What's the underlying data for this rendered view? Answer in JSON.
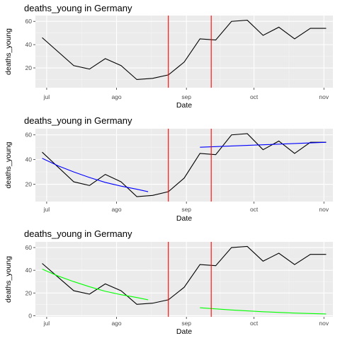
{
  "colors": {
    "panel_bg": "#ebebeb",
    "grid_major": "#ffffff",
    "grid_minor": "#f5f5f5",
    "series_black": "#000000",
    "vline_red": "#ff0000",
    "fit_blue": "#0000ff",
    "fit_green": "#00ff00",
    "tick_text": "#4d4d4d"
  },
  "chart_data": [
    {
      "type": "line",
      "title": "deaths_young in Germany",
      "xlabel": "Date",
      "ylabel": "deaths_young",
      "x_ticks": [
        {
          "label": "jul",
          "date": "2020-07-01"
        },
        {
          "label": "ago",
          "date": "2020-08-01"
        },
        {
          "label": "sep",
          "date": "2020-09-01"
        },
        {
          "label": "oct",
          "date": "2020-10-01"
        },
        {
          "label": "nov",
          "date": "2020-11-01"
        }
      ],
      "xlim": [
        "2020-06-26",
        "2020-11-05"
      ],
      "ylim": [
        3,
        65
      ],
      "y_ticks": [
        20,
        40,
        60
      ],
      "grid": true,
      "series": [
        {
          "color": "#000000",
          "points": [
            [
              "2020-06-29",
              46
            ],
            [
              "2020-07-13",
              22
            ],
            [
              "2020-07-20",
              19
            ],
            [
              "2020-07-27",
              28
            ],
            [
              "2020-08-03",
              22
            ],
            [
              "2020-08-10",
              10
            ],
            [
              "2020-08-17",
              11
            ],
            [
              "2020-08-24",
              14
            ],
            [
              "2020-08-31",
              25
            ],
            [
              "2020-09-07",
              45
            ],
            [
              "2020-09-14",
              44
            ],
            [
              "2020-09-21",
              60
            ],
            [
              "2020-09-28",
              61
            ],
            [
              "2020-10-05",
              48
            ],
            [
              "2020-10-12",
              55
            ],
            [
              "2020-10-19",
              45
            ],
            [
              "2020-10-26",
              54
            ],
            [
              "2020-11-02",
              54
            ]
          ]
        }
      ],
      "vlines": [
        "2020-08-24",
        "2020-09-12"
      ]
    },
    {
      "type": "line",
      "title": "deaths_young in Germany",
      "xlabel": "Date",
      "ylabel": "deaths_young",
      "x_ticks": [
        {
          "label": "jul",
          "date": "2020-07-01"
        },
        {
          "label": "ago",
          "date": "2020-08-01"
        },
        {
          "label": "sep",
          "date": "2020-09-01"
        },
        {
          "label": "oct",
          "date": "2020-10-01"
        },
        {
          "label": "nov",
          "date": "2020-11-01"
        }
      ],
      "xlim": [
        "2020-06-26",
        "2020-11-05"
      ],
      "ylim": [
        6,
        65
      ],
      "y_ticks": [
        20,
        40,
        60
      ],
      "grid": true,
      "series": [
        {
          "color": "#000000",
          "points": [
            [
              "2020-06-29",
              46
            ],
            [
              "2020-07-13",
              22
            ],
            [
              "2020-07-20",
              19
            ],
            [
              "2020-07-27",
              28
            ],
            [
              "2020-08-03",
              22
            ],
            [
              "2020-08-10",
              10
            ],
            [
              "2020-08-17",
              11
            ],
            [
              "2020-08-24",
              14
            ],
            [
              "2020-08-31",
              25
            ],
            [
              "2020-09-07",
              45
            ],
            [
              "2020-09-14",
              44
            ],
            [
              "2020-09-21",
              60
            ],
            [
              "2020-09-28",
              61
            ],
            [
              "2020-10-05",
              48
            ],
            [
              "2020-10-12",
              55
            ],
            [
              "2020-10-19",
              45
            ],
            [
              "2020-10-26",
              54
            ],
            [
              "2020-11-02",
              54
            ]
          ]
        },
        {
          "color": "#0000ff",
          "points": [
            [
              "2020-06-29",
              41
            ],
            [
              "2020-07-06",
              35
            ],
            [
              "2020-07-13",
              30
            ],
            [
              "2020-07-20",
              25.5
            ],
            [
              "2020-07-27",
              21.5
            ],
            [
              "2020-08-03",
              18.5
            ],
            [
              "2020-08-10",
              16
            ],
            [
              "2020-08-15",
              14
            ]
          ]
        },
        {
          "color": "#0000ff",
          "points": [
            [
              "2020-09-07",
              50
            ],
            [
              "2020-09-21",
              51
            ],
            [
              "2020-10-05",
              52
            ],
            [
              "2020-10-19",
              53
            ],
            [
              "2020-11-02",
              54
            ]
          ]
        }
      ],
      "vlines": [
        "2020-08-24",
        "2020-09-12"
      ]
    },
    {
      "type": "line",
      "title": "deaths_young in Germany",
      "xlabel": "Date",
      "ylabel": "deaths_young",
      "x_ticks": [
        {
          "label": "jul",
          "date": "2020-07-01"
        },
        {
          "label": "ago",
          "date": "2020-08-01"
        },
        {
          "label": "sep",
          "date": "2020-09-01"
        },
        {
          "label": "oct",
          "date": "2020-10-01"
        },
        {
          "label": "nov",
          "date": "2020-11-01"
        }
      ],
      "xlim": [
        "2020-06-26",
        "2020-11-05"
      ],
      "ylim": [
        -1,
        65
      ],
      "y_ticks": [
        0,
        20,
        40,
        60
      ],
      "grid": true,
      "series": [
        {
          "color": "#000000",
          "points": [
            [
              "2020-06-29",
              46
            ],
            [
              "2020-07-13",
              22
            ],
            [
              "2020-07-20",
              19
            ],
            [
              "2020-07-27",
              28
            ],
            [
              "2020-08-03",
              22
            ],
            [
              "2020-08-10",
              10
            ],
            [
              "2020-08-17",
              11
            ],
            [
              "2020-08-24",
              14
            ],
            [
              "2020-08-31",
              25
            ],
            [
              "2020-09-07",
              45
            ],
            [
              "2020-09-14",
              44
            ],
            [
              "2020-09-21",
              60
            ],
            [
              "2020-09-28",
              61
            ],
            [
              "2020-10-05",
              48
            ],
            [
              "2020-10-12",
              55
            ],
            [
              "2020-10-19",
              45
            ],
            [
              "2020-10-26",
              54
            ],
            [
              "2020-11-02",
              54
            ]
          ]
        },
        {
          "color": "#00ff00",
          "points": [
            [
              "2020-06-29",
              41
            ],
            [
              "2020-07-06",
              35
            ],
            [
              "2020-07-13",
              30
            ],
            [
              "2020-07-20",
              25.5
            ],
            [
              "2020-07-27",
              21.5
            ],
            [
              "2020-08-03",
              18.5
            ],
            [
              "2020-08-10",
              16
            ],
            [
              "2020-08-15",
              14
            ]
          ]
        },
        {
          "color": "#00ff00",
          "points": [
            [
              "2020-09-07",
              7
            ],
            [
              "2020-09-21",
              5
            ],
            [
              "2020-10-05",
              3.5
            ],
            [
              "2020-10-19",
              2.3
            ],
            [
              "2020-11-02",
              1.5
            ]
          ]
        }
      ],
      "vlines": [
        "2020-08-24",
        "2020-09-12"
      ]
    }
  ]
}
